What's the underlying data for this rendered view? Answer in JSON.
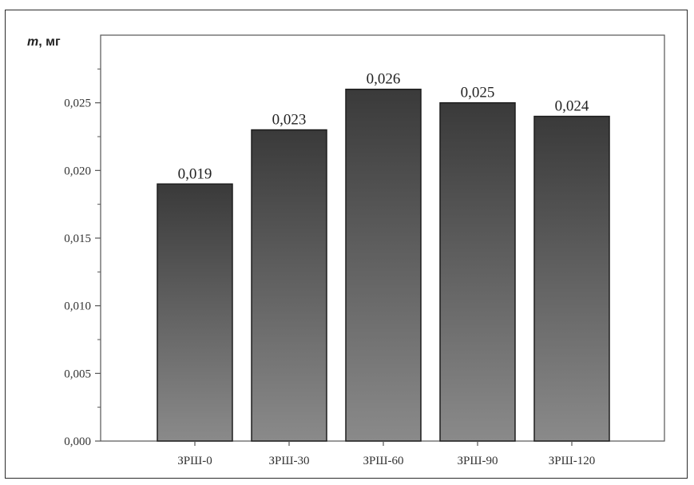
{
  "chart_data": {
    "type": "bar",
    "categories": [
      "ЗРШ-0",
      "ЗРШ-30",
      "ЗРШ-60",
      "ЗРШ-90",
      "ЗРШ-120"
    ],
    "values": [
      0.019,
      0.023,
      0.026,
      0.025,
      0.024
    ],
    "value_labels": [
      "0,019",
      "0,023",
      "0,026",
      "0,025",
      "0,024"
    ],
    "title": "",
    "xlabel": "",
    "ylabel_symbol": "m",
    "ylabel_unit": ", мг",
    "ylim": [
      0,
      0.03
    ],
    "yticks": [
      0,
      0.005,
      0.01,
      0.015,
      0.02,
      0.025
    ],
    "ytick_labels": [
      "0,000",
      "0,005",
      "0,010",
      "0,015",
      "0,020",
      "0,025"
    ],
    "grid": false,
    "legend": "none",
    "bar_gradient": [
      "#3a3a3a",
      "#8a8a8a"
    ]
  }
}
